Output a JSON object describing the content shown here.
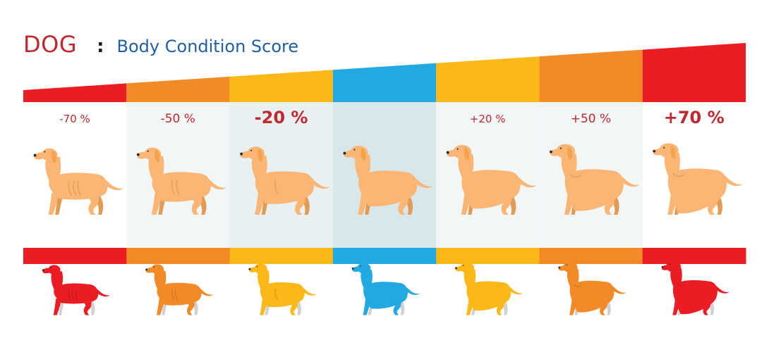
{
  "title": {
    "main": "DOG",
    "separator": ":",
    "subtitle": "Body Condition Score"
  },
  "scale": [
    {
      "label": "-70 %",
      "color": "#ec1c24",
      "body": "very-thin",
      "label_size": "small"
    },
    {
      "label": "-50 %",
      "color": "#f28a28",
      "body": "thin",
      "label_size": "mid"
    },
    {
      "label": "-20 %",
      "color": "#fbb817",
      "body": "slightly-thin",
      "label_size": "big"
    },
    {
      "label": "",
      "color": "#22a9e1",
      "body": "ideal",
      "label_size": "none"
    },
    {
      "label": "+20 %",
      "color": "#fbb817",
      "body": "slightly-heavy",
      "label_size": "small"
    },
    {
      "label": "+50 %",
      "color": "#f28a28",
      "body": "heavy",
      "label_size": "mid"
    },
    {
      "label": "+70 %",
      "color": "#ec1c24",
      "body": "obese",
      "label_size": "big"
    }
  ],
  "colors": {
    "title_red": "#c1272d",
    "subtitle_blue": "#1f5fa6",
    "dog_fur": "#fbb676",
    "dog_fur_shadow": "#e39a52",
    "dog_ear": "#f4a24c",
    "panel_light": "#f1f6f7",
    "panel_mid": "#e8f1f2",
    "panel_center": "#d8e8ea"
  }
}
